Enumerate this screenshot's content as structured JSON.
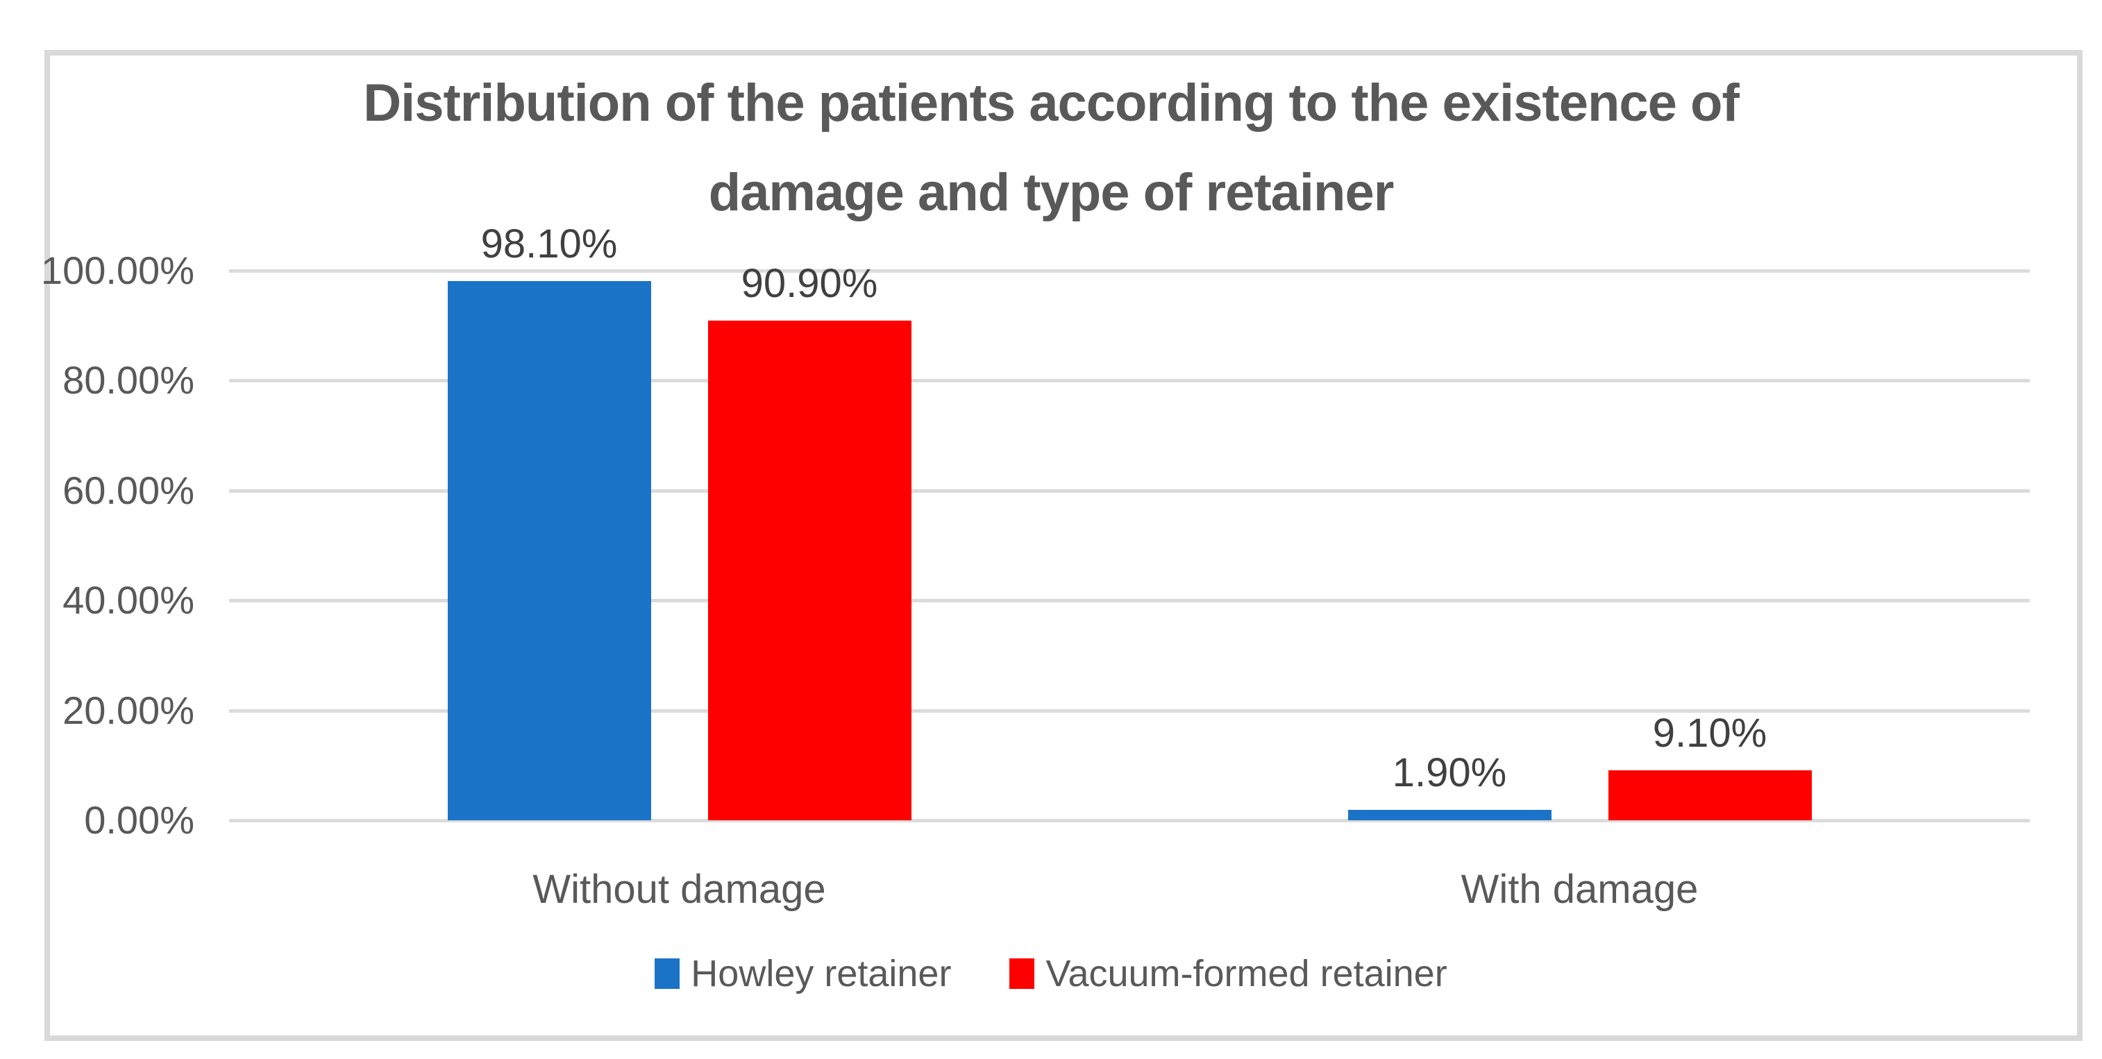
{
  "chart_data": {
    "type": "bar",
    "title": "Distribution of the patients according to the existence of damage and type of retainer",
    "title_lines": [
      "Distribution of the patients according to the existence of",
      "damage and type of retainer"
    ],
    "categories": [
      "Without damage",
      "With damage"
    ],
    "series": [
      {
        "name": "Howley retainer",
        "color": "#1B73C8",
        "values": [
          98.1,
          1.9
        ],
        "data_labels": [
          "98.10%",
          "1.90%"
        ]
      },
      {
        "name": "Vacuum-formed retainer",
        "color": "#FF0000",
        "values": [
          90.9,
          9.1
        ],
        "data_labels": [
          "90.90%",
          "9.10%"
        ]
      }
    ],
    "y_axis": {
      "min": 0,
      "max": 100,
      "step": 20,
      "tick_labels": [
        "100.00%",
        "80.00%",
        "60.00%",
        "40.00%",
        "20.00%",
        "0.00%"
      ]
    },
    "grid": true,
    "legend_position": "bottom"
  },
  "colors": {
    "series_blue": "#1B73C8",
    "series_red": "#FF0000",
    "title_text": "#595959",
    "axis_text": "#595959",
    "data_label_text": "#404040",
    "gridline": "#DBDBDB",
    "chart_border": "#D9D9D9",
    "background": "#FFFFFF"
  }
}
